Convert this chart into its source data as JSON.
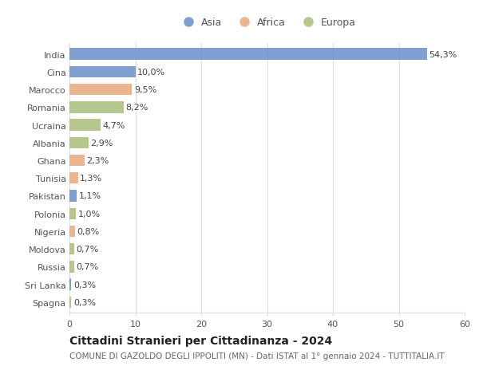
{
  "countries": [
    "India",
    "Cina",
    "Marocco",
    "Romania",
    "Ucraina",
    "Albania",
    "Ghana",
    "Tunisia",
    "Pakistan",
    "Polonia",
    "Nigeria",
    "Moldova",
    "Russia",
    "Sri Lanka",
    "Spagna"
  ],
  "values": [
    54.3,
    10.0,
    9.5,
    8.2,
    4.7,
    2.9,
    2.3,
    1.3,
    1.1,
    1.0,
    0.8,
    0.7,
    0.7,
    0.3,
    0.3
  ],
  "labels": [
    "54,3%",
    "10,0%",
    "9,5%",
    "8,2%",
    "4,7%",
    "2,9%",
    "2,3%",
    "1,3%",
    "1,1%",
    "1,0%",
    "0,8%",
    "0,7%",
    "0,7%",
    "0,3%",
    "0,3%"
  ],
  "continents": [
    "Asia",
    "Asia",
    "Africa",
    "Europa",
    "Europa",
    "Europa",
    "Africa",
    "Africa",
    "Asia",
    "Europa",
    "Africa",
    "Europa",
    "Europa",
    "Asia",
    "Europa"
  ],
  "colors": {
    "Asia": "#6b8ec9",
    "Africa": "#e8a87c",
    "Europa": "#a8bc7b"
  },
  "xlim": [
    0,
    60
  ],
  "xticks": [
    0,
    10,
    20,
    30,
    40,
    50,
    60
  ],
  "title": "Cittadini Stranieri per Cittadinanza - 2024",
  "subtitle": "COMUNE DI GAZOLDO DEGLI IPPOLITI (MN) - Dati ISTAT al 1° gennaio 2024 - TUTTITALIA.IT",
  "background_color": "#ffffff",
  "grid_color": "#dddddd",
  "bar_height": 0.65,
  "label_fontsize": 8,
  "title_fontsize": 10,
  "subtitle_fontsize": 7.5,
  "tick_fontsize": 8,
  "legend_fontsize": 9
}
